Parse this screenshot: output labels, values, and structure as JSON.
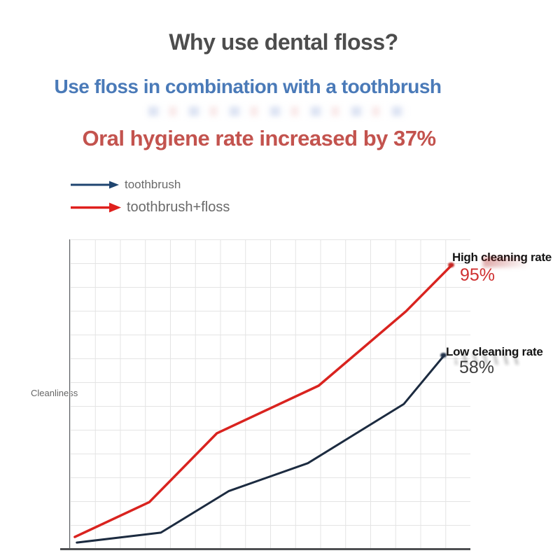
{
  "header": {
    "title": "Why use dental floss?",
    "subtitle": "Use floss in combination with a toothbrush",
    "highlight": "Oral hygiene rate increased by 37%"
  },
  "legend": {
    "items": [
      {
        "label": "toothbrush",
        "color": "#1f4570"
      },
      {
        "label": "toothbrush+floss",
        "color": "#df201d"
      }
    ]
  },
  "chart": {
    "ylabel": "Cleanliness",
    "annotations": {
      "high": {
        "label": "High cleaning rate",
        "value": "95%"
      },
      "low": {
        "label": "Low cleaning rate",
        "value": "58%"
      }
    }
  },
  "chart_data": {
    "type": "line",
    "title": "Cleanliness: toothbrush vs toothbrush+floss",
    "xlabel": "",
    "ylabel": "Cleanliness",
    "x_axis": {
      "tick_labels": [],
      "range_pct": [
        0,
        100
      ]
    },
    "y_axis": {
      "tick_labels": [],
      "range_pct": [
        0,
        100
      ],
      "gridlines": true
    },
    "legend_position": "top-left",
    "series": [
      {
        "name": "toothbrush",
        "color": "#1c2b40",
        "stroke_width": 3,
        "end_value_label": "58%",
        "end_annotation": "Low cleaning rate",
        "values_pct_estimate": [
          2,
          5,
          18,
          28,
          47,
          58
        ],
        "points_pct": [
          [
            1.7,
            1.8
          ],
          [
            22.7,
            5.0
          ],
          [
            39.7,
            18.5
          ],
          [
            59.4,
            27.5
          ],
          [
            83.4,
            46.7
          ],
          [
            93.5,
            62.5
          ]
        ]
      },
      {
        "name": "toothbrush+floss",
        "color": "#d9231f",
        "stroke_width": 3.5,
        "end_value_label": "95%",
        "end_annotation": "High cleaning rate",
        "values_pct_estimate": [
          4,
          15,
          39,
          55,
          80,
          95
        ],
        "points_pct": [
          [
            1.2,
            3.6
          ],
          [
            19.8,
            14.9
          ],
          [
            36.7,
            37.2
          ],
          [
            62.1,
            52.6
          ],
          [
            83.9,
            76.7
          ],
          [
            95.3,
            91.6
          ]
        ]
      }
    ]
  },
  "colors": {
    "title_gray": "#4d4d4d",
    "subtitle_blue": "#4a7ab8",
    "highlight_red": "#c3534e",
    "legend_label_gray": "#6a6a6a",
    "grid_gray": "#e4e4e4",
    "axis_gray": "#55585c",
    "annotation_black": "#141414",
    "high_value_red": "#cf3030",
    "low_value_dark": "#3d3d3d"
  }
}
